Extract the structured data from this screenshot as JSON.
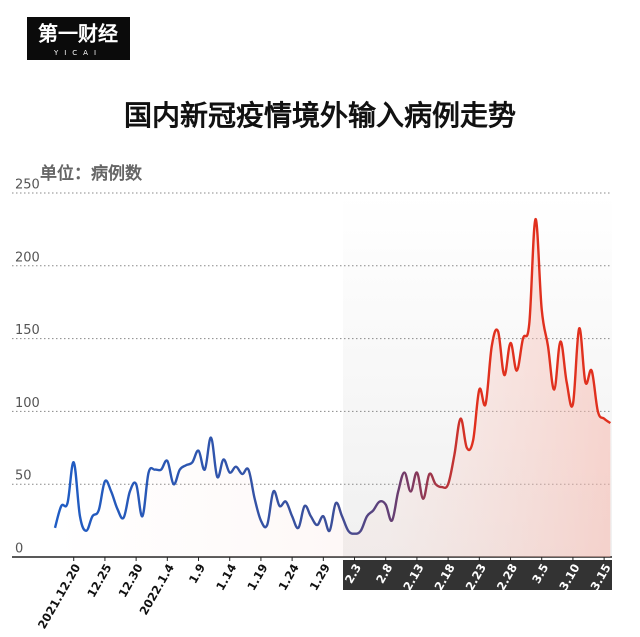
{
  "logo": {
    "text": "第一财经",
    "sub": "YICAI"
  },
  "chart_data": {
    "type": "line",
    "title": "国内新冠疫情境外输入病例走势",
    "subtitle": "单位：病例数",
    "categories": [
      null,
      null,
      null,
      "2021.12.20",
      null,
      null,
      null,
      null,
      "12.25",
      null,
      null,
      null,
      null,
      "12.30",
      null,
      null,
      null,
      null,
      "2022.1.4",
      null,
      null,
      null,
      null,
      "1.9",
      null,
      null,
      null,
      null,
      "1.14",
      null,
      null,
      null,
      null,
      "1.19",
      null,
      null,
      null,
      null,
      "1.24",
      null,
      null,
      null,
      null,
      "1.29",
      null,
      null,
      null,
      null,
      "2.3",
      null,
      null,
      null,
      null,
      "2.8",
      null,
      null,
      null,
      null,
      "2.13",
      null,
      null,
      null,
      null,
      "2.18",
      null,
      null,
      null,
      null,
      "2.23",
      null,
      null,
      null,
      null,
      "2.28",
      null,
      null,
      null,
      null,
      "3.5",
      null,
      null,
      null,
      null,
      "3.10",
      null,
      null,
      null,
      null,
      "3.15",
      null
    ],
    "values": [
      20,
      35,
      37,
      65,
      28,
      18,
      28,
      32,
      52,
      45,
      33,
      27,
      45,
      50,
      28,
      58,
      60,
      60,
      66,
      50,
      60,
      63,
      65,
      73,
      60,
      82,
      55,
      67,
      58,
      62,
      57,
      60,
      40,
      25,
      22,
      45,
      35,
      38,
      28,
      20,
      35,
      28,
      22,
      28,
      18,
      37,
      28,
      18,
      16,
      18,
      28,
      32,
      38,
      36,
      25,
      45,
      58,
      45,
      58,
      40,
      57,
      50,
      48,
      50,
      70,
      95,
      75,
      80,
      115,
      105,
      145,
      155,
      125,
      147,
      128,
      150,
      160,
      232,
      170,
      145,
      115,
      148,
      120,
      105,
      157,
      120,
      128,
      100,
      95,
      92
    ],
    "colors": [
      "#1f5cc4",
      "#3c4f9a",
      "#6a3c6e",
      "#e0301e"
    ],
    "ylim": [
      0,
      250
    ],
    "yticks": [
      0,
      50,
      100,
      150,
      200,
      250
    ],
    "grid": true
  }
}
